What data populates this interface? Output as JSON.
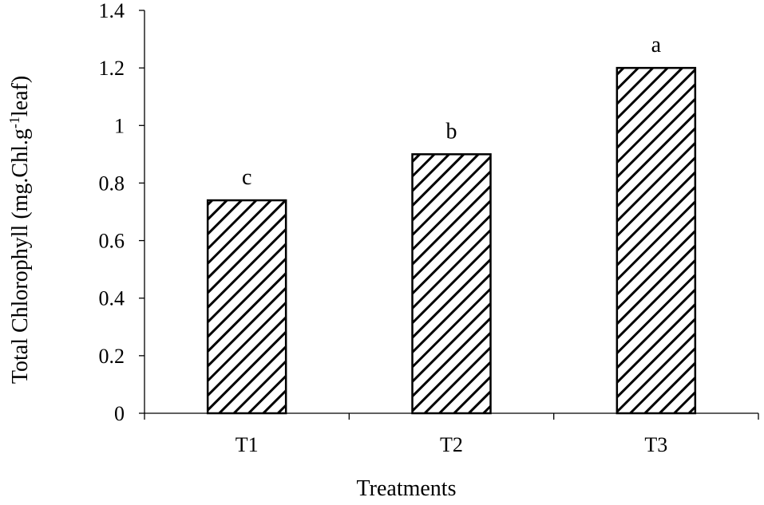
{
  "chart_data": {
    "type": "bar",
    "categories": [
      "T1",
      "T2",
      "T3"
    ],
    "values": [
      0.74,
      0.9,
      1.2
    ],
    "significance_letters": [
      "c",
      "b",
      "a"
    ],
    "title": "",
    "xlabel": "Treatments",
    "ylabel": {
      "main": "Total Chlorophyll  (mg.Chl.g",
      "superscript": "-1",
      "suffix": "leaf)"
    },
    "ylim": [
      0,
      1.4
    ],
    "yticks": [
      "0",
      "0.2",
      "0.4",
      "0.6",
      "0.8",
      "1",
      "1.2",
      "1.4"
    ],
    "ytick_values": [
      0,
      0.2,
      0.4,
      0.6,
      0.8,
      1,
      1.2,
      1.4
    ],
    "grid": false,
    "legend": "none",
    "bar_fill": "diagonal-hatch",
    "colors": {
      "ink": "#000000",
      "background": "#ffffff"
    }
  }
}
